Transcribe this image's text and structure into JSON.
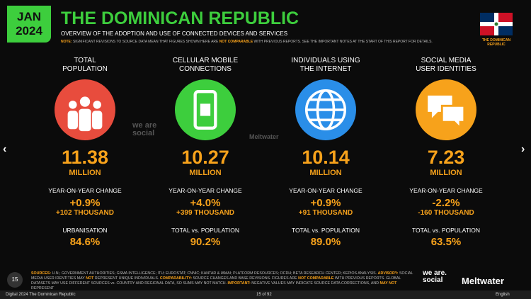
{
  "header": {
    "badge": [
      "JAN",
      "2024"
    ],
    "title": "THE DOMINICAN REPUBLIC",
    "subtitle": "OVERVIEW OF THE ADOPTION AND USE OF CONNECTED DEVICES AND SERVICES",
    "note": [
      "NOTE:",
      " SIGNIFICANT REVISIONS TO SOURCE DATA MEAN THAT FIGURES SHOWN HERE ARE ",
      "NOT COMPARABLE",
      " WITH PREVIOUS REPORTS. SEE THE IMPORTANT NOTES AT THE START OF THIS REPORT FOR DETAILS."
    ]
  },
  "flag_label": "THE DOMINICAN REPUBLIC",
  "stats": [
    {
      "label": [
        "TOTAL",
        "POPULATION"
      ],
      "value": "11.38",
      "unit": "MILLION",
      "yoy_label": "YEAR-ON-YEAR CHANGE",
      "yoy_pct": "+0.9%",
      "yoy_abs": "+102 THOUSAND",
      "extra_label": "URBANISATION",
      "extra_value": "84.6%"
    },
    {
      "label": [
        "CELLULAR MOBILE",
        "CONNECTIONS"
      ],
      "value": "10.27",
      "unit": "MILLION",
      "yoy_label": "YEAR-ON-YEAR CHANGE",
      "yoy_pct": "+4.0%",
      "yoy_abs": "+399 THOUSAND",
      "extra_label": "TOTAL vs. POPULATION",
      "extra_value": "90.2%"
    },
    {
      "label": [
        "INDIVIDUALS USING",
        "THE INTERNET"
      ],
      "value": "10.14",
      "unit": "MILLION",
      "yoy_label": "YEAR-ON-YEAR CHANGE",
      "yoy_pct": "+0.9%",
      "yoy_abs": "+91 THOUSAND",
      "extra_label": "TOTAL vs. POPULATION",
      "extra_value": "89.0%"
    },
    {
      "label": [
        "SOCIAL MEDIA",
        "USER IDENTITIES"
      ],
      "value": "7.23",
      "unit": "MILLION",
      "yoy_label": "YEAR-ON-YEAR CHANGE",
      "yoy_pct": "-2.2%",
      "yoy_abs": "-160 THOUSAND",
      "extra_label": "TOTAL vs. POPULATION",
      "extra_value": "63.5%"
    }
  ],
  "watermarks": [
    "we are social",
    "Meltwater"
  ],
  "footer": {
    "page": "15",
    "sources": [
      "SOURCES:",
      " U.N.; GOVERNMENT AUTHORITIES; GSMA INTELLIGENCE; ITU; EUROSTAT; CNNIC; KANTAR & IAMAI; PLATFORM RESOURCES; OCDH; BETA RESEARCH CENTER; KEPIOS ANALYSIS. ",
      "ADVISORY:",
      " SOCIAL MEDIA USER IDENTITIES MAY ",
      "NOT",
      " REPRESENT UNIQUE INDIVIDUALS. ",
      "COMPARABILITY:",
      " SOURCE CHANGES AND BASE REVISIONS. FIGURES ARE ",
      "NOT COMPARABLE",
      " WITH PREVIOUS REPORTS. GLOBAL DATASETS MAY USE DIFFERENT SOURCES vs. COUNTRY AND REGIONAL DATA, SO SUMS MAY NOT MATCH. ",
      "IMPORTANT:",
      " NEGATIVE VALUES MAY INDICATE SOURCE DATA CORRECTIONS, AND ",
      "MAY NOT",
      " REPRESENT"
    ],
    "logo_was": "we are. social",
    "logo_mw": "Meltwater"
  },
  "viewer": {
    "doc": "Digital 2024 The Dominican Republic",
    "pages": "15 of 92",
    "lang": "English"
  }
}
